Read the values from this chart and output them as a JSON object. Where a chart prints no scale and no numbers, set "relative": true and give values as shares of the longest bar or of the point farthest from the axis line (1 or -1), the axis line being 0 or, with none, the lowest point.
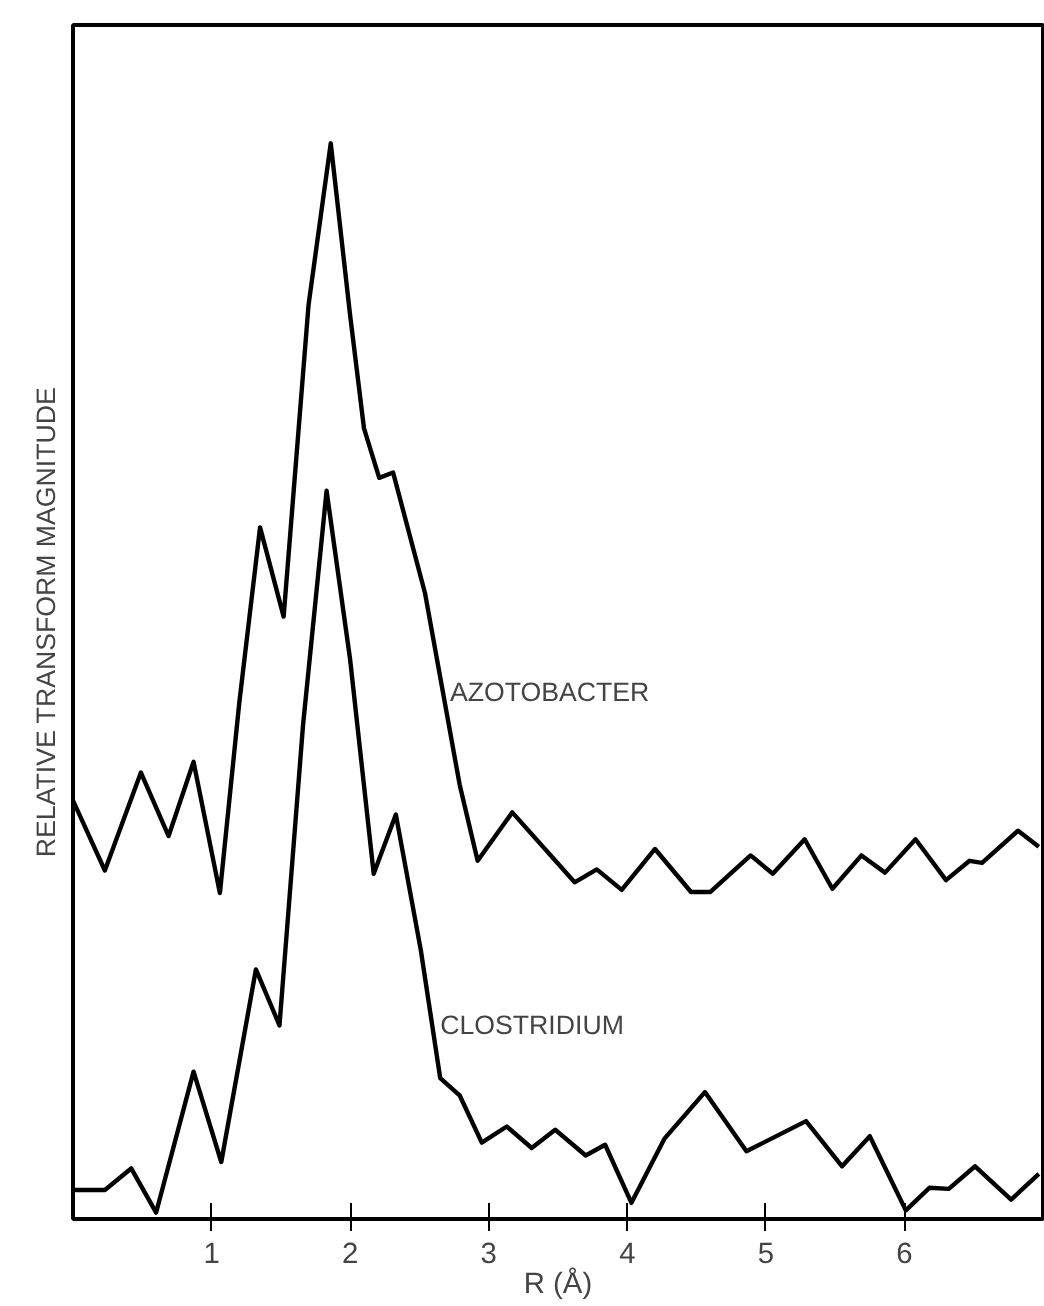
{
  "chart_data": {
    "type": "line",
    "relative": true,
    "xlabel": "R (Å)",
    "ylabel": "RELATIVE TRANSFORM MAGNITUDE",
    "xlim": [
      0,
      7
    ],
    "xticks": [
      1,
      2,
      3,
      4,
      5,
      6
    ],
    "grid": false,
    "marker": "none",
    "line_style": "solid",
    "tick_labels": "x",
    "series": [
      {
        "color": "#000000",
        "x": [
          0,
          0.23,
          0.49,
          0.69,
          0.87,
          1.06,
          1.2,
          1.35,
          1.52,
          1.7,
          1.86,
          2.0,
          2.1,
          2.21,
          2.31,
          2.54,
          2.79,
          2.92,
          3.17,
          3.62,
          3.78,
          3.96,
          4.2,
          4.46,
          4.6,
          4.89,
          5.05,
          5.28,
          5.48,
          5.69,
          5.86,
          6.08,
          6.3,
          6.47,
          6.56,
          6.82,
          6.97
        ],
        "values": [
          0.389,
          0.324,
          0.415,
          0.356,
          0.425,
          0.303,
          0.48,
          0.643,
          0.56,
          0.85,
          1.0,
          0.84,
          0.735,
          0.689,
          0.694,
          0.582,
          0.404,
          0.333,
          0.378,
          0.313,
          0.325,
          0.306,
          0.344,
          0.304,
          0.304,
          0.338,
          0.321,
          0.353,
          0.307,
          0.338,
          0.322,
          0.353,
          0.315,
          0.333,
          0.331,
          0.361,
          0.346
        ]
      },
      {
        "color": "#000000",
        "x": [
          0,
          0.23,
          0.42,
          0.6,
          0.87,
          1.07,
          1.32,
          1.49,
          1.66,
          1.83,
          2.0,
          2.17,
          2.33,
          2.51,
          2.65,
          2.79,
          2.95,
          3.13,
          3.31,
          3.48,
          3.7,
          3.84,
          4.03,
          4.27,
          4.56,
          4.86,
          5.29,
          5.55,
          5.75,
          6.01,
          6.18,
          6.32,
          6.51,
          6.77,
          6.97
        ],
        "values": [
          0.027,
          0.027,
          0.047,
          0.006,
          0.137,
          0.053,
          0.232,
          0.18,
          0.459,
          0.677,
          0.52,
          0.321,
          0.376,
          0.25,
          0.131,
          0.115,
          0.071,
          0.086,
          0.066,
          0.083,
          0.059,
          0.069,
          0.015,
          0.075,
          0.118,
          0.063,
          0.091,
          0.049,
          0.077,
          0.008,
          0.029,
          0.028,
          0.049,
          0.018,
          0.042
        ]
      }
    ],
    "annotations": [
      {
        "text": "AZOTOBACTER",
        "x": 2.72,
        "y": 0.49
      },
      {
        "text": "CLOSTRIDIUM",
        "x": 2.65,
        "y": 0.18
      }
    ]
  }
}
